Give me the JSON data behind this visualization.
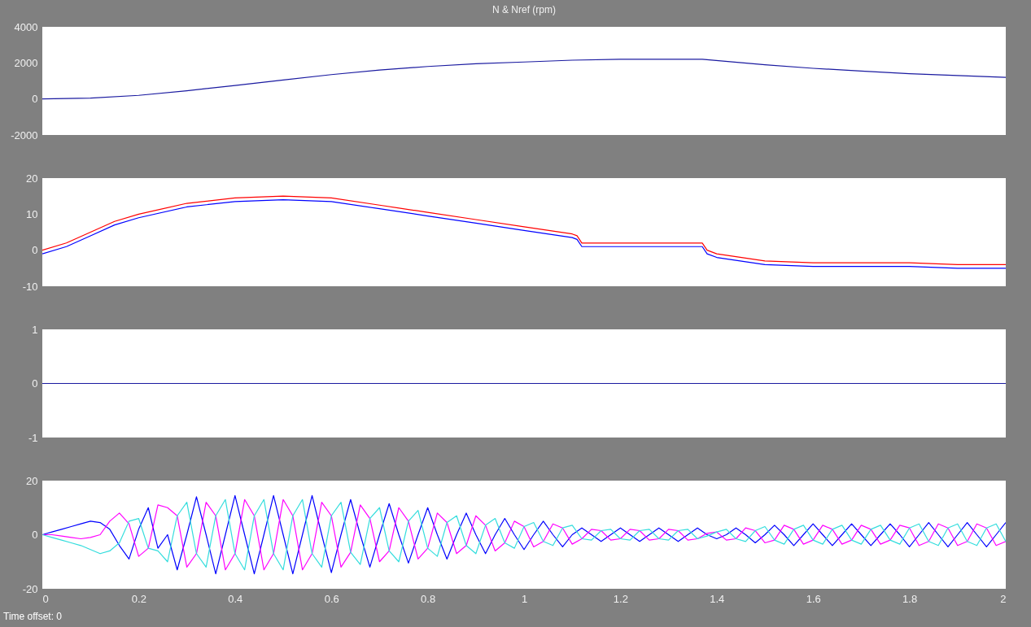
{
  "chart_data": [
    {
      "type": "line",
      "title": "N & Nref (rpm)",
      "x": [
        0,
        0.1,
        0.2,
        0.3,
        0.4,
        0.5,
        0.6,
        0.7,
        0.8,
        0.9,
        1.0,
        1.1,
        1.2,
        1.3,
        1.37,
        1.5,
        1.6,
        1.7,
        1.8,
        1.9,
        2.0
      ],
      "series": [
        {
          "color": "#1a1aa0",
          "values": [
            0,
            50,
            200,
            450,
            750,
            1050,
            1350,
            1600,
            1800,
            1950,
            2050,
            2150,
            2200,
            2200,
            2200,
            1900,
            1700,
            1550,
            1400,
            1300,
            1200
          ]
        }
      ],
      "xlim": [
        0,
        2
      ],
      "ylim": [
        -2000,
        4000
      ],
      "yticks": [
        -2000,
        0,
        2000,
        4000
      ],
      "tick_labels": "y",
      "grid": false,
      "legend": false
    },
    {
      "type": "line",
      "x": [
        0,
        0.05,
        0.1,
        0.15,
        0.2,
        0.3,
        0.4,
        0.5,
        0.6,
        0.7,
        0.8,
        0.9,
        1.0,
        1.1,
        1.11,
        1.12,
        1.2,
        1.3,
        1.37,
        1.38,
        1.4,
        1.5,
        1.6,
        1.7,
        1.8,
        1.9,
        2.0
      ],
      "series": [
        {
          "color": "#0000ff",
          "values": [
            -1,
            1,
            4,
            7,
            9,
            12,
            13.5,
            14,
            13.5,
            11.5,
            9.5,
            7.5,
            5.5,
            3.5,
            3,
            1,
            1,
            1,
            1,
            -1,
            -2,
            -4,
            -4.5,
            -4.5,
            -4.5,
            -5,
            -5
          ]
        },
        {
          "color": "#ff0000",
          "values": [
            0,
            2,
            5,
            8,
            10,
            13,
            14.5,
            15,
            14.5,
            12.5,
            10.5,
            8.5,
            6.5,
            4.5,
            4,
            2,
            2,
            2,
            2,
            0,
            -1,
            -3,
            -3.5,
            -3.5,
            -3.5,
            -4,
            -4
          ]
        }
      ],
      "xlim": [
        0,
        2
      ],
      "ylim": [
        -10,
        20
      ],
      "yticks": [
        -10,
        0,
        10,
        20
      ],
      "tick_labels": "y",
      "grid": false,
      "legend": false
    },
    {
      "type": "line",
      "x": [
        0,
        2
      ],
      "series": [
        {
          "color": "#1a1aa0",
          "values": [
            0,
            0
          ]
        }
      ],
      "xlim": [
        0,
        2
      ],
      "ylim": [
        -1,
        1
      ],
      "yticks": [
        -1,
        0,
        1
      ],
      "tick_labels": "y",
      "grid": false,
      "legend": false
    },
    {
      "type": "line",
      "annotations": [
        "Time offset:  0"
      ],
      "x": [
        0,
        0.02,
        0.04,
        0.06,
        0.08,
        0.1,
        0.12,
        0.14,
        0.16,
        0.18,
        0.2,
        0.22,
        0.24,
        0.26,
        0.28,
        0.3,
        0.32,
        0.34,
        0.36,
        0.38,
        0.4,
        0.42,
        0.44,
        0.46,
        0.48,
        0.5,
        0.52,
        0.54,
        0.56,
        0.58,
        0.6,
        0.62,
        0.64,
        0.66,
        0.68,
        0.7,
        0.72,
        0.74,
        0.76,
        0.78,
        0.8,
        0.82,
        0.84,
        0.86,
        0.88,
        0.9,
        0.92,
        0.94,
        0.96,
        0.98,
        1.0,
        1.02,
        1.04,
        1.06,
        1.08,
        1.1,
        1.12,
        1.14,
        1.16,
        1.18,
        1.2,
        1.22,
        1.24,
        1.26,
        1.28,
        1.3,
        1.32,
        1.34,
        1.36,
        1.38,
        1.4,
        1.42,
        1.44,
        1.46,
        1.48,
        1.5,
        1.52,
        1.54,
        1.56,
        1.58,
        1.6,
        1.62,
        1.64,
        1.66,
        1.68,
        1.7,
        1.72,
        1.74,
        1.76,
        1.78,
        1.8,
        1.82,
        1.84,
        1.86,
        1.88,
        1.9,
        1.92,
        1.94,
        1.96,
        1.98,
        2.0
      ],
      "series": [
        {
          "color": "#0000ff",
          "values": [
            0,
            1,
            2,
            3,
            4,
            5,
            4.5,
            2,
            -4,
            -9,
            2,
            10,
            -5,
            0,
            -13,
            0,
            14,
            0,
            -14.5,
            0,
            14.5,
            0,
            -14.5,
            0,
            14.5,
            0,
            -14.5,
            0,
            14.5,
            0,
            -14,
            0,
            13,
            0,
            -12,
            0,
            11.5,
            0,
            -10.5,
            0,
            10,
            0,
            -9,
            0,
            8,
            0,
            -7,
            0,
            6,
            0,
            -5.5,
            0,
            5,
            0,
            -4.5,
            0,
            2.5,
            0,
            -2.5,
            0,
            2.5,
            0,
            -2.5,
            0,
            2.5,
            0,
            -2.5,
            0,
            2.5,
            0,
            -1.5,
            0,
            2.5,
            0,
            -3,
            0,
            3.5,
            0,
            -4,
            0,
            4,
            0,
            -4,
            0,
            4,
            0,
            -4,
            0,
            4,
            0,
            -4.5,
            0,
            4.5,
            0,
            -4.5,
            0,
            4.5,
            0,
            -4.5,
            0,
            4.5
          ]
        },
        {
          "color": "#ff00ff",
          "values": [
            0,
            0,
            -0.5,
            -1,
            -1.5,
            -1,
            0,
            5,
            8,
            4,
            -8,
            -5,
            11,
            10,
            7,
            -12,
            -7,
            12,
            7,
            -13,
            -7,
            13,
            7,
            -13,
            -7,
            13,
            7,
            -13,
            -7,
            12,
            7,
            -12,
            -6.5,
            11,
            6,
            -10,
            -6,
            10,
            5,
            -9,
            -5,
            8,
            4.5,
            -7,
            -4,
            7,
            3.5,
            -6,
            -3,
            5,
            3,
            -4.5,
            -2.5,
            4,
            2.5,
            -3.5,
            -1.5,
            2,
            1.5,
            -2,
            -1.5,
            2,
            1.5,
            -2,
            -1.5,
            2,
            1.5,
            -2,
            -1.5,
            0.5,
            1,
            -2,
            -1.5,
            2.5,
            1.5,
            -3,
            -2,
            3.5,
            2,
            -3.5,
            -2,
            3.5,
            2,
            -3.5,
            -2,
            3.5,
            2,
            -3.5,
            -2,
            3.5,
            2.5,
            -4,
            -2.5,
            4,
            2.5,
            -4,
            -2.5,
            4,
            2.5,
            -4,
            -2.5
          ]
        },
        {
          "color": "#33dddd",
          "values": [
            0,
            -1,
            -2,
            -3,
            -4,
            -5.5,
            -7,
            -6,
            -3,
            5,
            6,
            -5,
            -6,
            -10,
            7,
            12,
            -7,
            -12,
            7,
            13,
            -7,
            -13,
            7,
            13,
            -7,
            -13,
            7,
            13,
            -7,
            -12,
            7,
            12,
            -6.5,
            -11,
            6,
            10,
            -6,
            -10,
            5,
            9,
            -5,
            -8,
            4.5,
            7,
            -4,
            -7,
            3.5,
            6,
            -3,
            -5,
            3,
            4.5,
            -2.5,
            -4,
            2.5,
            3.5,
            -1.5,
            -2,
            1.5,
            2,
            -1.5,
            -2,
            1.5,
            2,
            -1.5,
            -2,
            1.5,
            2,
            -1.5,
            -0.5,
            1,
            2,
            -1.5,
            -2.5,
            1.5,
            3,
            -2,
            -3.5,
            2,
            3.5,
            -2,
            -3.5,
            2,
            3.5,
            -2,
            -3.5,
            2,
            3.5,
            -2,
            -3.5,
            2.5,
            4,
            -2.5,
            -4,
            2.5,
            4,
            -2.5,
            -4,
            2.5,
            4,
            -2.5
          ]
        }
      ],
      "xlim": [
        0,
        2
      ],
      "xticks": [
        0,
        0.2,
        0.4,
        0.6,
        0.8,
        1,
        1.2,
        1.4,
        1.6,
        1.8,
        2
      ],
      "ylim": [
        -20,
        20
      ],
      "yticks": [
        -20,
        0,
        20
      ],
      "grid": false,
      "legend": false
    }
  ]
}
